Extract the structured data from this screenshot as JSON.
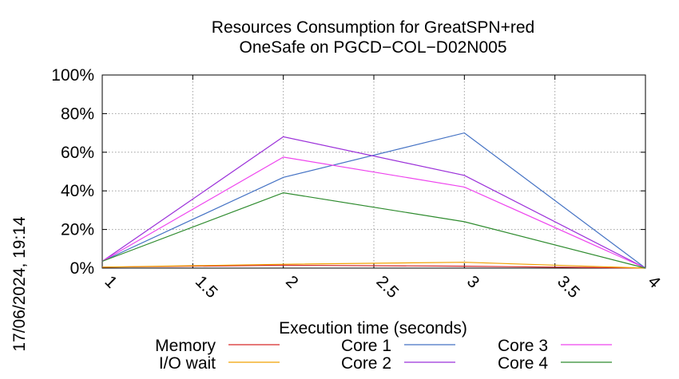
{
  "chart_data": {
    "type": "line",
    "title_lines": [
      "Resources Consumption for GreatSPN+red",
      "OneSafe on PGCD−COL−D02N005"
    ],
    "xlabel": "Execution time (seconds)",
    "ylabel": "",
    "side_label": "17/06/2024, 19:14",
    "xlim": [
      1,
      4
    ],
    "ylim": [
      0,
      100
    ],
    "x_ticks": [
      1,
      1.5,
      2,
      2.5,
      3,
      3.5,
      4
    ],
    "x_tick_labels": [
      "1",
      "1.5",
      "2",
      "2.5",
      "3",
      "3.5",
      "4"
    ],
    "y_ticks": [
      0,
      20,
      40,
      60,
      80,
      100
    ],
    "y_tick_labels": [
      "0%",
      "20%",
      "40%",
      "60%",
      "80%",
      "100%"
    ],
    "grid": true,
    "legend_position": "bottom",
    "x": [
      1,
      2,
      3,
      4
    ],
    "series": [
      {
        "name": "Memory",
        "color": "#d62728",
        "values": [
          0.5,
          1.5,
          1.0,
          0
        ]
      },
      {
        "name": "I/O wait",
        "color": "#f0a000",
        "values": [
          0.5,
          2.0,
          3.0,
          0
        ]
      },
      {
        "name": "Core 1",
        "color": "#4472c4",
        "values": [
          3.5,
          47,
          70,
          0
        ]
      },
      {
        "name": "Core 2",
        "color": "#9b30d9",
        "values": [
          3.5,
          68,
          48,
          0
        ]
      },
      {
        "name": "Core 3",
        "color": "#ee44ee",
        "values": [
          3.5,
          57.5,
          42,
          0
        ]
      },
      {
        "name": "Core 4",
        "color": "#2e8b2e",
        "values": [
          3.5,
          39,
          24,
          0
        ]
      }
    ]
  }
}
